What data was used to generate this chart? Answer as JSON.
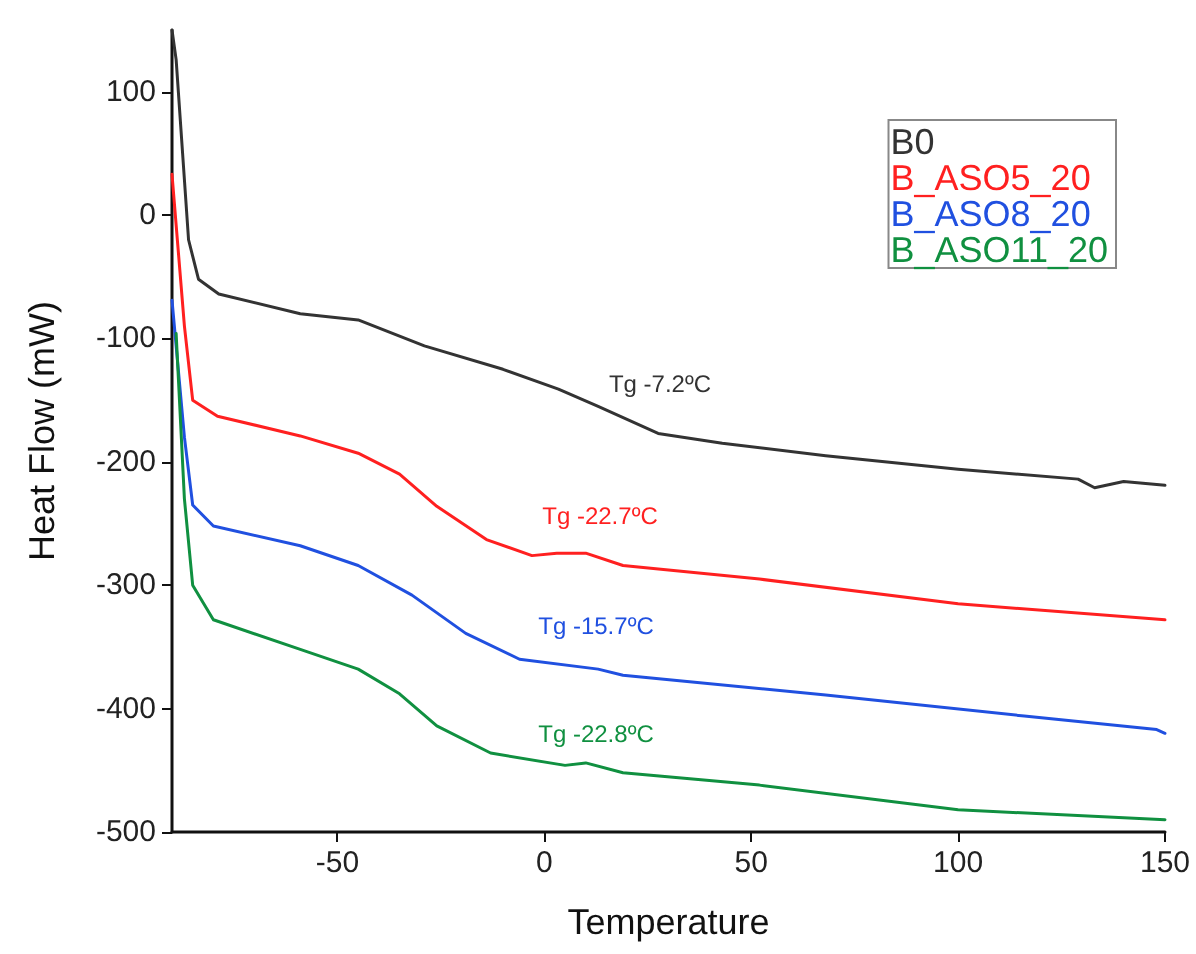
{
  "chart_data": {
    "type": "line",
    "xlabel": "Temperature",
    "ylabel": "Heat Flow (mW)",
    "xlim": [
      -90,
      150
    ],
    "xticks": [
      -50,
      0,
      50,
      100,
      150
    ],
    "ylim": [
      -500,
      150
    ],
    "yticks": [
      -500,
      -400,
      -300,
      -200,
      -100,
      0,
      100
    ],
    "grid": false,
    "legend": "top right",
    "marker": "none",
    "line_style": "solid",
    "series": [
      {
        "name": "B0",
        "color": "#333333",
        "x": [
          -90,
          -89,
          -86,
          -83.6,
          -78.7,
          -59,
          -45,
          -29,
          -10,
          3.4,
          13,
          27.5,
          43,
          68,
          100,
          129,
          133,
          140,
          150
        ],
        "values": [
          150,
          126,
          -20,
          -52,
          -64,
          -80,
          -85,
          -106,
          -125,
          -141,
          -155,
          -177,
          -185,
          -195,
          -206,
          -214,
          -221,
          -216,
          -219
        ]
      },
      {
        "name": "B_ASO5_20",
        "color": "#ff2020",
        "x": [
          -90,
          -87,
          -85,
          -79,
          -59,
          -45,
          -35,
          -26,
          -14,
          -3,
          3,
          10,
          19,
          52,
          100,
          150
        ],
        "values": [
          33,
          -90,
          -150,
          -163,
          -179,
          -193,
          -210,
          -236,
          -263,
          -276,
          -274,
          -274,
          -284,
          -295,
          -315,
          -328
        ]
      },
      {
        "name": "B_ASO8_20",
        "color": "#2050e0",
        "x": [
          -90,
          -87,
          -85,
          -80,
          -59,
          -45,
          -32,
          -19,
          -6,
          13,
          19,
          68,
          116,
          148,
          150
        ],
        "values": [
          -69,
          -180,
          -235,
          -252,
          -268,
          -284,
          -308,
          -339,
          -360,
          -368,
          -373,
          -389,
          -406,
          -417,
          -420
        ]
      },
      {
        "name": "B_ASO11_20",
        "color": "#109040",
        "x": [
          -89,
          -87,
          -85,
          -80,
          -59,
          -45,
          -35,
          -26,
          -13,
          5,
          10,
          19,
          52,
          100,
          150
        ],
        "values": [
          -96,
          -230,
          -300,
          -328,
          -352,
          -368,
          -388,
          -414,
          -436,
          -446,
          -444,
          -452,
          -462,
          -482,
          -490
        ]
      }
    ],
    "annotations": [
      "Tg -7.2ºC",
      "Tg -22.7ºC",
      "Tg -15.7ºC",
      "Tg -22.8ºC"
    ]
  }
}
